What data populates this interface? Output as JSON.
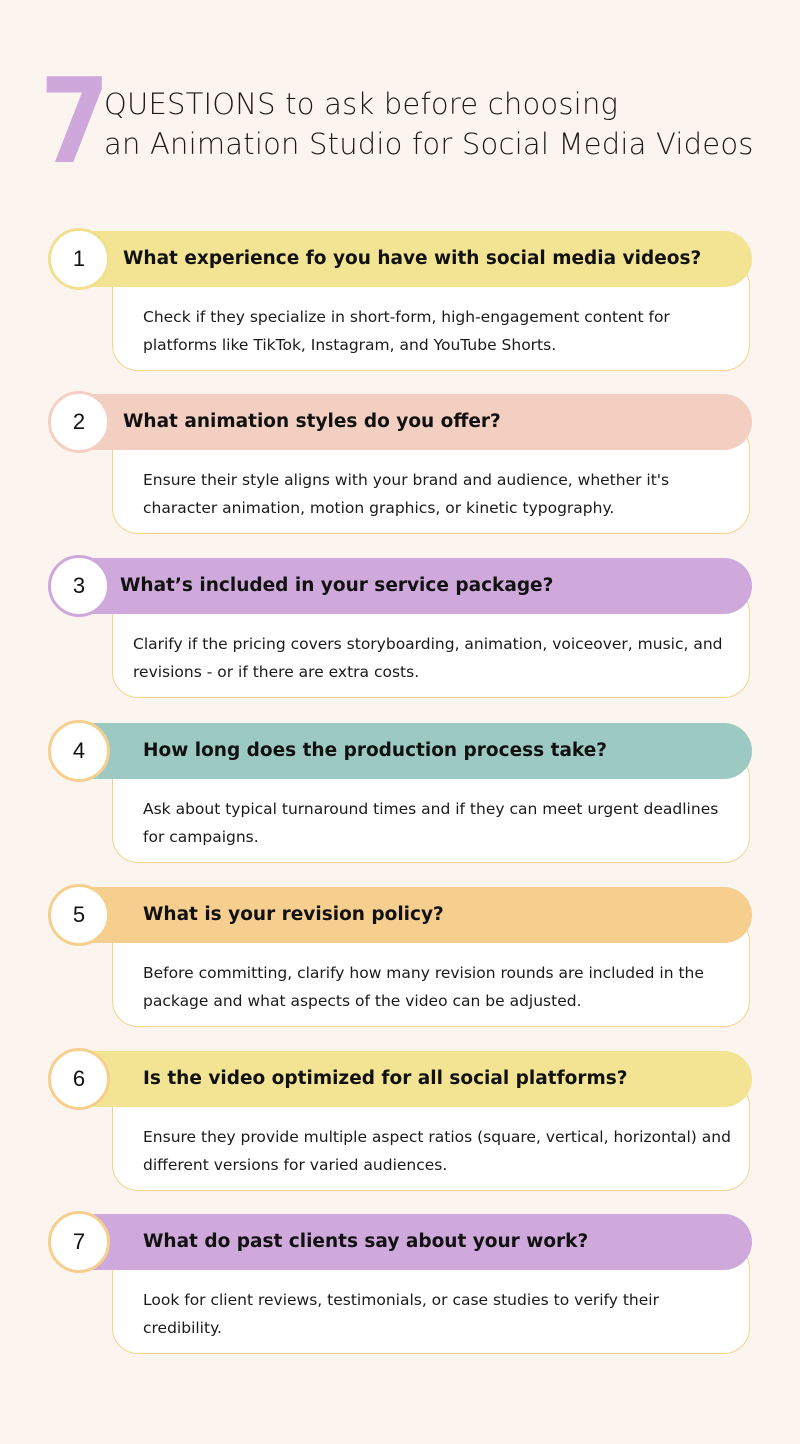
{
  "header": {
    "number": "7",
    "line1": "QUESTIONS to ask before choosing",
    "line2": "an Animation Studio for Social Media Videos"
  },
  "colors": {
    "background": "#fcf5ef",
    "accent_purple": "#cfa8db",
    "card_border": "#f5d28c"
  },
  "items": [
    {
      "number": "1",
      "question": "What experience fo you have with social media videos?",
      "answer": "Check if they specialize in short-form, high-engagement content for platforms like TikTok, Instagram, and YouTube Shorts.",
      "banner_color": "#f3e494",
      "circle_border": "#f1e08f"
    },
    {
      "number": "2",
      "question": "What animation styles do you offer?",
      "answer": "Ensure their style aligns with your brand and audience, whether it's character animation, motion graphics, or kinetic typography.",
      "banner_color": "#f2cfc0",
      "circle_border": "#f3d0c2"
    },
    {
      "number": "3",
      "question": "What’s included in your service package?",
      "answer": "Clarify if the pricing covers storyboarding, animation, voiceover, music, and revisions - or if there are extra costs.",
      "banner_color": "#cfa9dc",
      "circle_border": "#cfa8db"
    },
    {
      "number": "4",
      "question": "How long does the production process take?",
      "answer": "Ask about typical turnaround times and if they can meet urgent deadlines for campaigns.",
      "banner_color": "#9ccac2",
      "circle_border": "#f6cf8e"
    },
    {
      "number": "5",
      "question": "What is your revision policy?",
      "answer": "Before committing, clarify how many revision rounds are included in the package and what aspects of the video can be adjusted.",
      "banner_color": "#f6cf8f",
      "circle_border": "#f6cf8e"
    },
    {
      "number": "6",
      "question": "Is the video optimized for all social platforms?",
      "answer": "Ensure they provide multiple aspect ratios (square, vertical, horizontal) and different versions for varied audiences.",
      "banner_color": "#f3e494",
      "circle_border": "#f6cf8e"
    },
    {
      "number": "7",
      "question": "What do past clients say about your work?",
      "answer": "Look for client reviews, testimonials, or case studies to verify their credibility.",
      "banner_color": "#cfa9dc",
      "circle_border": "#f6cf8e"
    }
  ]
}
